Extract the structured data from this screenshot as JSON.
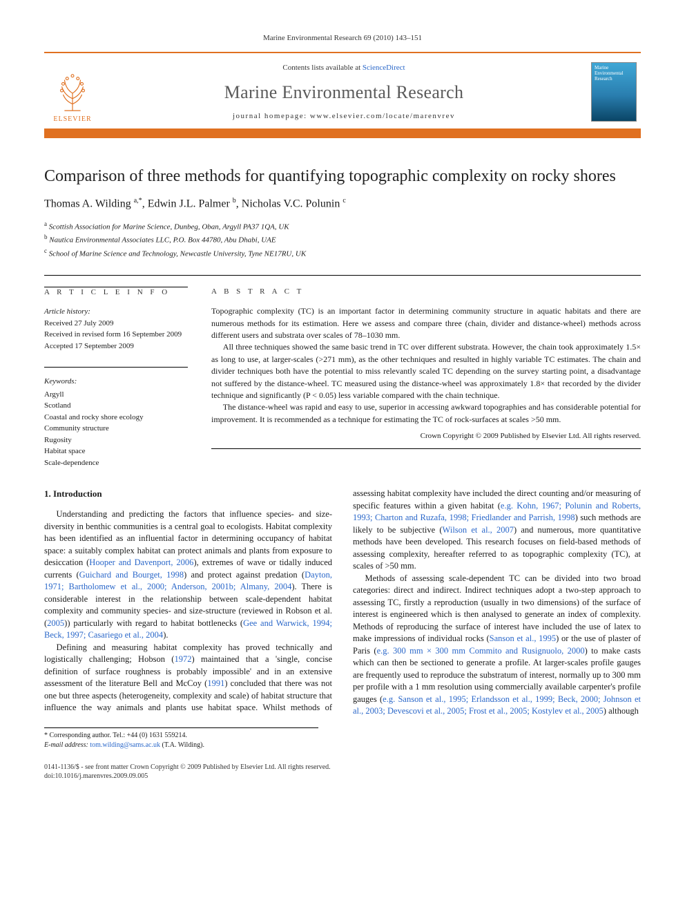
{
  "running_head": "Marine Environmental Research 69 (2010) 143–151",
  "masthead": {
    "contents_prefix": "Contents lists available at ",
    "contents_link": "ScienceDirect",
    "journal": "Marine Environmental Research",
    "homepage_prefix": "journal homepage: ",
    "homepage_url": "www.elsevier.com/locate/marenvrev",
    "publisher_label": "ELSEVIER",
    "cover_line1": "Marine",
    "cover_line2": "Environmental",
    "cover_line3": "Research"
  },
  "title": "Comparison of three methods for quantifying topographic complexity on rocky shores",
  "authors_html": "Thomas A. Wilding <sup>a,*</sup>, Edwin J.L. Palmer <sup>b</sup>, Nicholas V.C. Polunin <sup>c</sup>",
  "authors": [
    {
      "name": "Thomas A. Wilding",
      "marker": "a,*"
    },
    {
      "name": "Edwin J.L. Palmer",
      "marker": "b"
    },
    {
      "name": "Nicholas V.C. Polunin",
      "marker": "c"
    }
  ],
  "affiliations": [
    {
      "marker": "a",
      "text": "Scottish Association for Marine Science, Dunbeg, Oban, Argyll PA37 1QA, UK"
    },
    {
      "marker": "b",
      "text": "Nautica Environmental Associates LLC, P.O. Box 44780, Abu Dhabi, UAE"
    },
    {
      "marker": "c",
      "text": "School of Marine Science and Technology, Newcastle University, Tyne NE17RU, UK"
    }
  ],
  "article_info_heading": "A R T I C L E   I N F O",
  "abstract_heading": "A B S T R A C T",
  "history": {
    "label": "Article history:",
    "received": "Received 27 July 2009",
    "revised": "Received in revised form 16 September 2009",
    "accepted": "Accepted 17 September 2009"
  },
  "keywords": {
    "label": "Keywords:",
    "items": [
      "Argyll",
      "Scotland",
      "Coastal and rocky shore ecology",
      "Community structure",
      "Rugosity",
      "Habitat space",
      "Scale-dependence"
    ]
  },
  "abstract_paragraphs": [
    "Topographic complexity (TC) is an important factor in determining community structure in aquatic habitats and there are numerous methods for its estimation. Here we assess and compare three (chain, divider and distance-wheel) methods across different users and substrata over scales of 78–1030 mm.",
    "All three techniques showed the same basic trend in TC over different substrata. However, the chain took approximately 1.5× as long to use, at larger-scales (>271 mm), as the other techniques and resulted in highly variable TC estimates. The chain and divider techniques both have the potential to miss relevantly scaled TC depending on the survey starting point, a disadvantage not suffered by the distance-wheel. TC measured using the distance-wheel was approximately 1.8× that recorded by the divider technique and significantly (P < 0.05) less variable compared with the chain technique.",
    "The distance-wheel was rapid and easy to use, superior in accessing awkward topographies and has considerable potential for improvement. It is recommended as a technique for estimating the TC of rock-surfaces at scales >50 mm."
  ],
  "abstract_copyright": "Crown Copyright © 2009 Published by Elsevier Ltd. All rights reserved.",
  "section_heading": "1. Introduction",
  "body_paragraphs": [
    "Understanding and predicting the factors that influence species- and size-diversity in benthic communities is a central goal to ecologists. Habitat complexity has been identified as an influential factor in determining occupancy of habitat space: a suitably complex habitat can protect animals and plants from exposure to desiccation (Hooper and Davenport, 2006), extremes of wave or tidally induced currents (Guichard and Bourget, 1998) and protect against predation (Dayton, 1971; Bartholomew et al., 2000; Anderson, 2001b; Almany, 2004). There is considerable interest in the relationship between scale-dependent habitat complexity and community species- and size-structure (reviewed in Robson et al. (2005)) particularly with regard to habitat bottlenecks (Gee and Warwick, 1994; Beck, 1997; Casariego et al., 2004).",
    "Defining and measuring habitat complexity has proved technically and logistically challenging; Hobson (1972) maintained that a 'single, concise definition of surface roughness is probably impossible' and in an extensive assessment of the literature Bell and McCoy (1991) concluded that there was not one but three aspects (heterogeneity, complexity and scale) of habitat structure that influence the way animals and plants use habitat space. Whilst methods of assessing habitat complexity have included the direct counting and/or measuring of specific features within a given habitat (e.g. Kohn, 1967; Polunin and Roberts, 1993; Charton and Ruzafa, 1998; Friedlander and Parrish, 1998) such methods are likely to be subjective (Wilson et al., 2007) and numerous, more quantitative methods have been developed. This research focuses on field-based methods of assessing complexity, hereafter referred to as topographic complexity (TC), at scales of >50 mm.",
    "Methods of assessing scale-dependent TC can be divided into two broad categories: direct and indirect. Indirect techniques adopt a two-step approach to assessing TC, firstly a reproduction (usually in two dimensions) of the surface of interest is engineered which is then analysed to generate an index of complexity. Methods of reproducing the surface of interest have included the use of latex to make impressions of individual rocks (Sanson et al., 1995) or the use of plaster of Paris (e.g. 300 mm × 300 mm Commito and Rusignuolo, 2000) to make casts which can then be sectioned to generate a profile. At larger-scales profile gauges are frequently used to reproduce the substratum of interest, normally up to 300 mm per profile with a 1 mm resolution using commercially available carpenter's profile gauges (e.g. Sanson et al., 1995; Erlandsson et al., 1999; Beck, 2000; Johnson et al., 2003; Devescovi et al., 2005; Frost et al., 2005; Kostylev et al., 2005) although"
  ],
  "correspondence": {
    "label": "* Corresponding author. Tel.: +44 (0) 1631 559214.",
    "email_label": "E-mail address:",
    "email": "tom.wilding@sams.ac.uk",
    "email_suffix": "(T.A. Wilding)."
  },
  "footer": {
    "line1": "0141-1136/$ - see front matter Crown Copyright © 2009 Published by Elsevier Ltd. All rights reserved.",
    "line2": "doi:10.1016/j.marenvres.2009.09.005"
  },
  "colors": {
    "accent": "#e07020",
    "link": "#2a67c9",
    "text": "#1a1a1a",
    "muted": "#5a5a5a"
  },
  "typography": {
    "body_pt": 12.5,
    "title_pt": 24,
    "journal_pt": 26,
    "meta_pt": 11,
    "footer_pt": 10
  }
}
